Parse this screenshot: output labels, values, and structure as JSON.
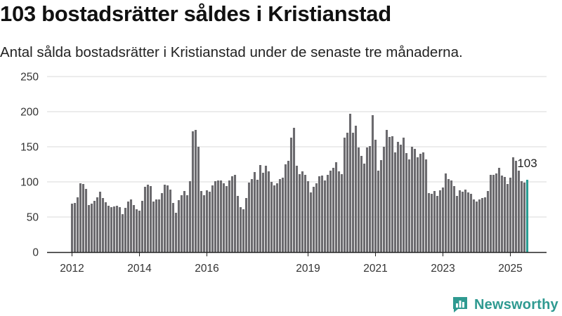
{
  "header": {
    "title": "103 bostadsrätter såldes i Kristianstad",
    "subtitle": "Antal sålda bostadsrätter i Kristianstad under de senaste tre månaderna."
  },
  "brand": {
    "name": "Newsworthy",
    "color": "#2f9a91"
  },
  "colors": {
    "bar": "#6b6a6e",
    "highlight": "#2a9d93",
    "grid": "#d9d9d9",
    "axis": "#222222"
  },
  "chart_data": {
    "type": "bar",
    "title": "",
    "xlabel": "",
    "ylabel": "",
    "ylim": [
      0,
      250
    ],
    "yticks": [
      "0",
      "50",
      "100",
      "150",
      "200",
      "250"
    ],
    "grid": true,
    "x_start": "2012-01",
    "xtick_labels": [
      {
        "year": 2012,
        "label": "2012"
      },
      {
        "year": 2014,
        "label": "2014"
      },
      {
        "year": 2016,
        "label": "2016"
      },
      {
        "year": 2019,
        "label": "2019"
      },
      {
        "year": 2021,
        "label": "2021"
      },
      {
        "year": 2023,
        "label": "2023"
      },
      {
        "year": 2025,
        "label": "2025"
      }
    ],
    "values": [
      69,
      70,
      78,
      98,
      97,
      90,
      67,
      69,
      73,
      78,
      86,
      77,
      71,
      66,
      64,
      65,
      66,
      64,
      54,
      63,
      72,
      75,
      67,
      61,
      59,
      73,
      93,
      96,
      94,
      72,
      75,
      75,
      84,
      96,
      95,
      89,
      70,
      56,
      74,
      81,
      87,
      81,
      101,
      172,
      174,
      150,
      87,
      81,
      88,
      86,
      95,
      101,
      102,
      102,
      98,
      94,
      102,
      108,
      110,
      80,
      64,
      61,
      77,
      99,
      104,
      114,
      103,
      124,
      113,
      123,
      115,
      100,
      95,
      98,
      104,
      106,
      125,
      130,
      163,
      177,
      123,
      111,
      115,
      110,
      101,
      85,
      93,
      98,
      108,
      109,
      102,
      110,
      116,
      120,
      128,
      115,
      111,
      163,
      170,
      197,
      170,
      180,
      149,
      137,
      126,
      149,
      151,
      195,
      160,
      116,
      131,
      150,
      174,
      164,
      165,
      142,
      157,
      153,
      163,
      141,
      132,
      150,
      147,
      135,
      140,
      142,
      132,
      84,
      83,
      87,
      80,
      88,
      92,
      112,
      104,
      102,
      94,
      80,
      88,
      86,
      89,
      85,
      83,
      75,
      72,
      75,
      77,
      78,
      87,
      110,
      110,
      112,
      120,
      109,
      107,
      97,
      106,
      135,
      130,
      116,
      101,
      99,
      103
    ],
    "highlight_last": true,
    "annotation": {
      "label": "103"
    }
  }
}
